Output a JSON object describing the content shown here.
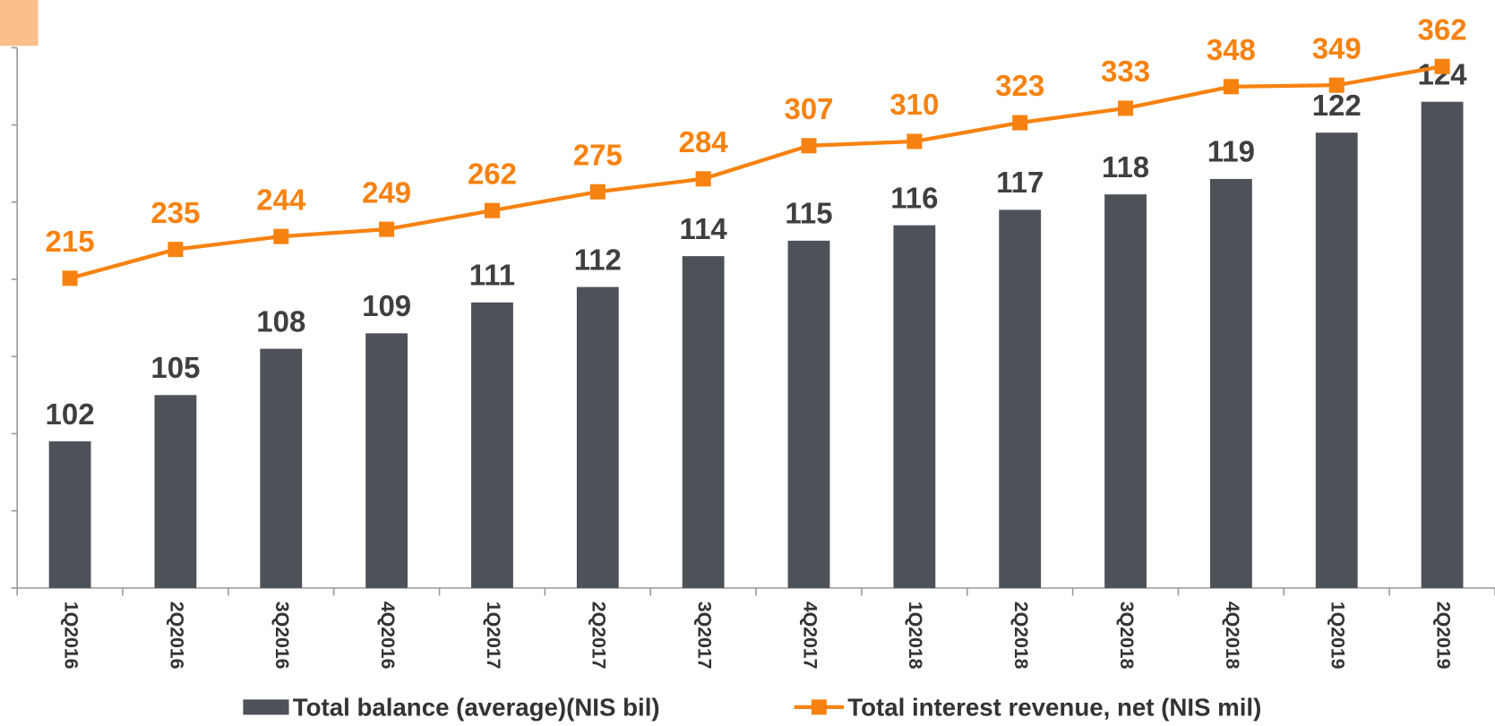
{
  "chart_data": {
    "type": "bar-line",
    "categories": [
      "1Q2016",
      "2Q2016",
      "3Q2016",
      "4Q2016",
      "1Q2017",
      "2Q2017",
      "3Q2017",
      "4Q2017",
      "1Q2018",
      "2Q2018",
      "3Q2018",
      "4Q2018",
      "1Q2019",
      "2Q2019"
    ],
    "series": [
      {
        "name": "Total balance (average)(NIS bil)",
        "type": "bar",
        "color": "#4d5258",
        "values": [
          102,
          105,
          108,
          109,
          111,
          112,
          114,
          115,
          116,
          117,
          118,
          119,
          122,
          124
        ]
      },
      {
        "name": "Total interest revenue, net (NIS mil)",
        "type": "line",
        "axis": "y2",
        "color": "#f7820f",
        "values": [
          215,
          235,
          244,
          249,
          262,
          275,
          284,
          307,
          310,
          323,
          333,
          348,
          349,
          362
        ]
      }
    ],
    "ylim": [
      92.5,
      127.5
    ],
    "yticks": [
      92.5,
      97.5,
      102.5,
      107.5,
      112.5,
      117.5,
      122.5,
      127.5
    ],
    "y2lim": [
      0,
      375
    ],
    "legend": "bottom"
  }
}
